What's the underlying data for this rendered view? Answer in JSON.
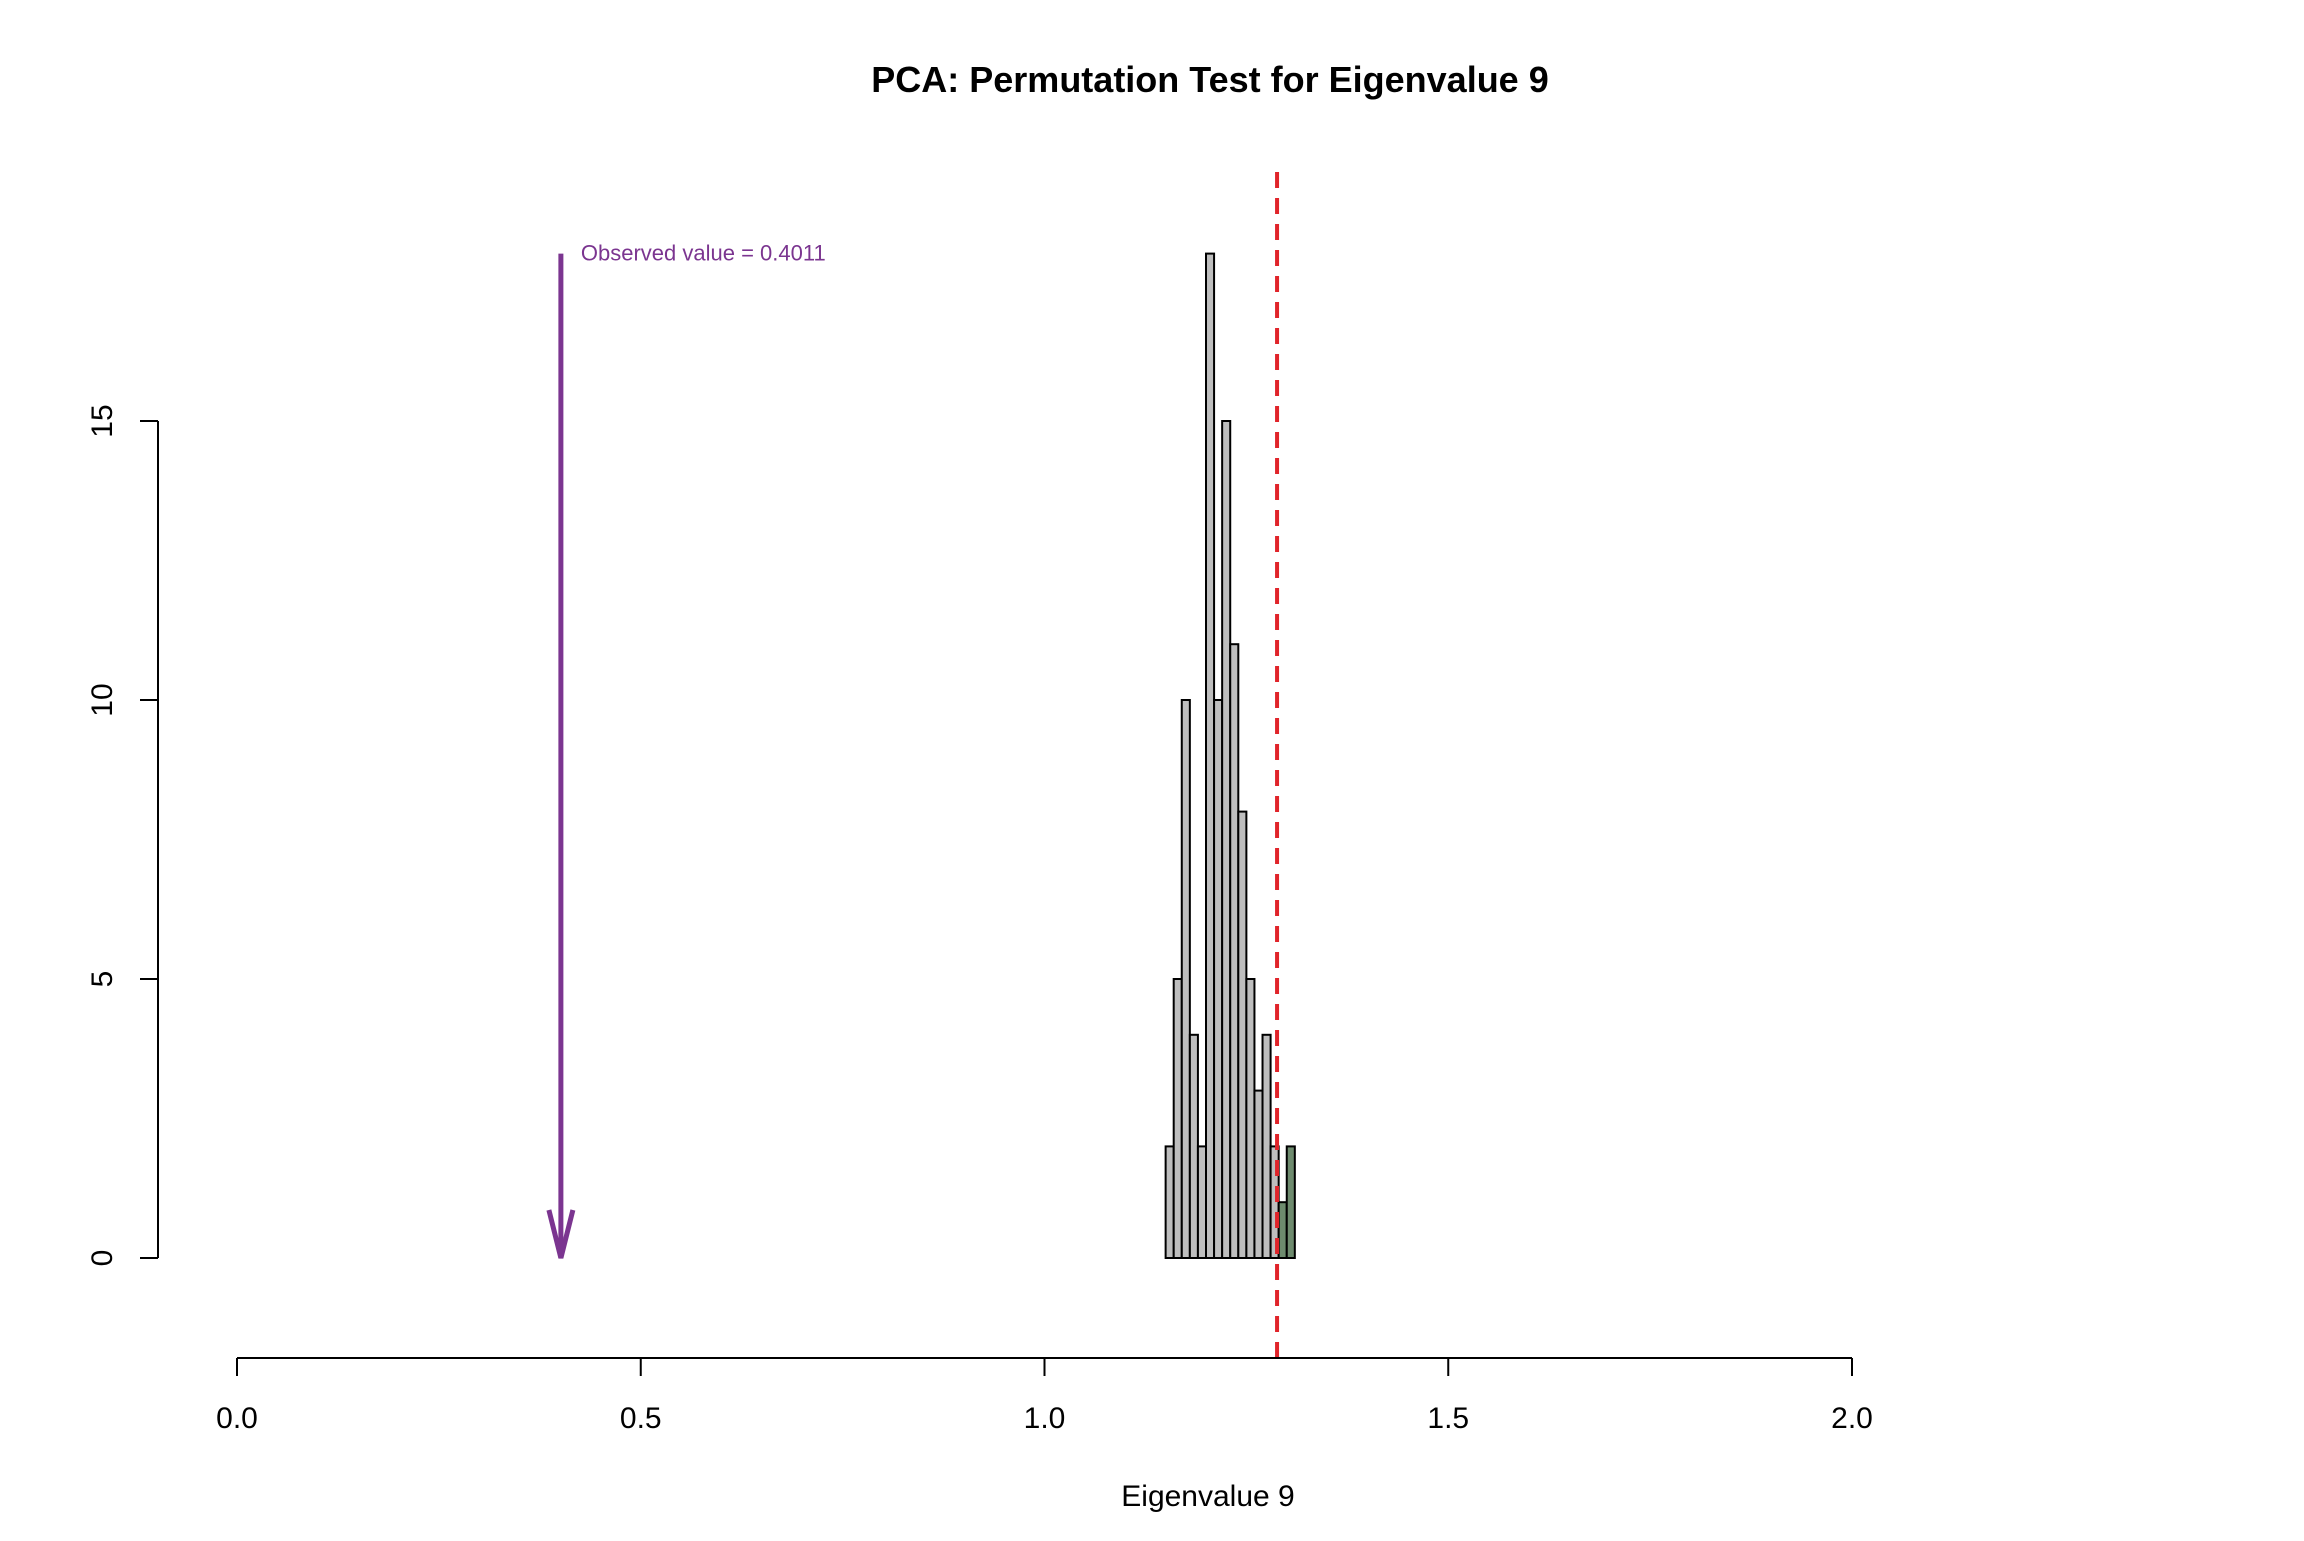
{
  "chart_data": {
    "type": "bar",
    "title": "PCA: Permutation Test for Eigenvalue 9",
    "xlabel": "Eigenvalue 9",
    "ylabel": "",
    "xlim": [
      0.0,
      2.0
    ],
    "ylim": [
      0,
      18
    ],
    "x_ticks": [
      "0.0",
      "0.5",
      "1.0",
      "1.5",
      "2.0"
    ],
    "y_ticks": [
      "0",
      "5",
      "10",
      "15"
    ],
    "grid": false,
    "bins": [
      {
        "start": 1.15,
        "end": 1.16,
        "count": 2
      },
      {
        "start": 1.16,
        "end": 1.17,
        "count": 5
      },
      {
        "start": 1.17,
        "end": 1.18,
        "count": 10
      },
      {
        "start": 1.18,
        "end": 1.19,
        "count": 4
      },
      {
        "start": 1.19,
        "end": 1.2,
        "count": 2
      },
      {
        "start": 1.2,
        "end": 1.21,
        "count": 18
      },
      {
        "start": 1.21,
        "end": 1.22,
        "count": 10
      },
      {
        "start": 1.22,
        "end": 1.23,
        "count": 15
      },
      {
        "start": 1.23,
        "end": 1.24,
        "count": 11
      },
      {
        "start": 1.24,
        "end": 1.25,
        "count": 8
      },
      {
        "start": 1.25,
        "end": 1.26,
        "count": 5
      },
      {
        "start": 1.26,
        "end": 1.27,
        "count": 3
      },
      {
        "start": 1.27,
        "end": 1.28,
        "count": 4
      },
      {
        "start": 1.28,
        "end": 1.29,
        "count": 2
      },
      {
        "start": 1.29,
        "end": 1.3,
        "count": 1
      },
      {
        "start": 1.3,
        "end": 1.31,
        "count": 2
      }
    ],
    "critical_value": 1.288,
    "observed_value": 0.4011,
    "observed_label": "Observed value = 0.4011",
    "colors": {
      "bar_fill": "#bebebe",
      "bar_tail_fill": "#6e8b6e",
      "bar_stroke": "#000000",
      "critical_line": "#e0242a",
      "observed_arrow": "#7b3590"
    }
  }
}
